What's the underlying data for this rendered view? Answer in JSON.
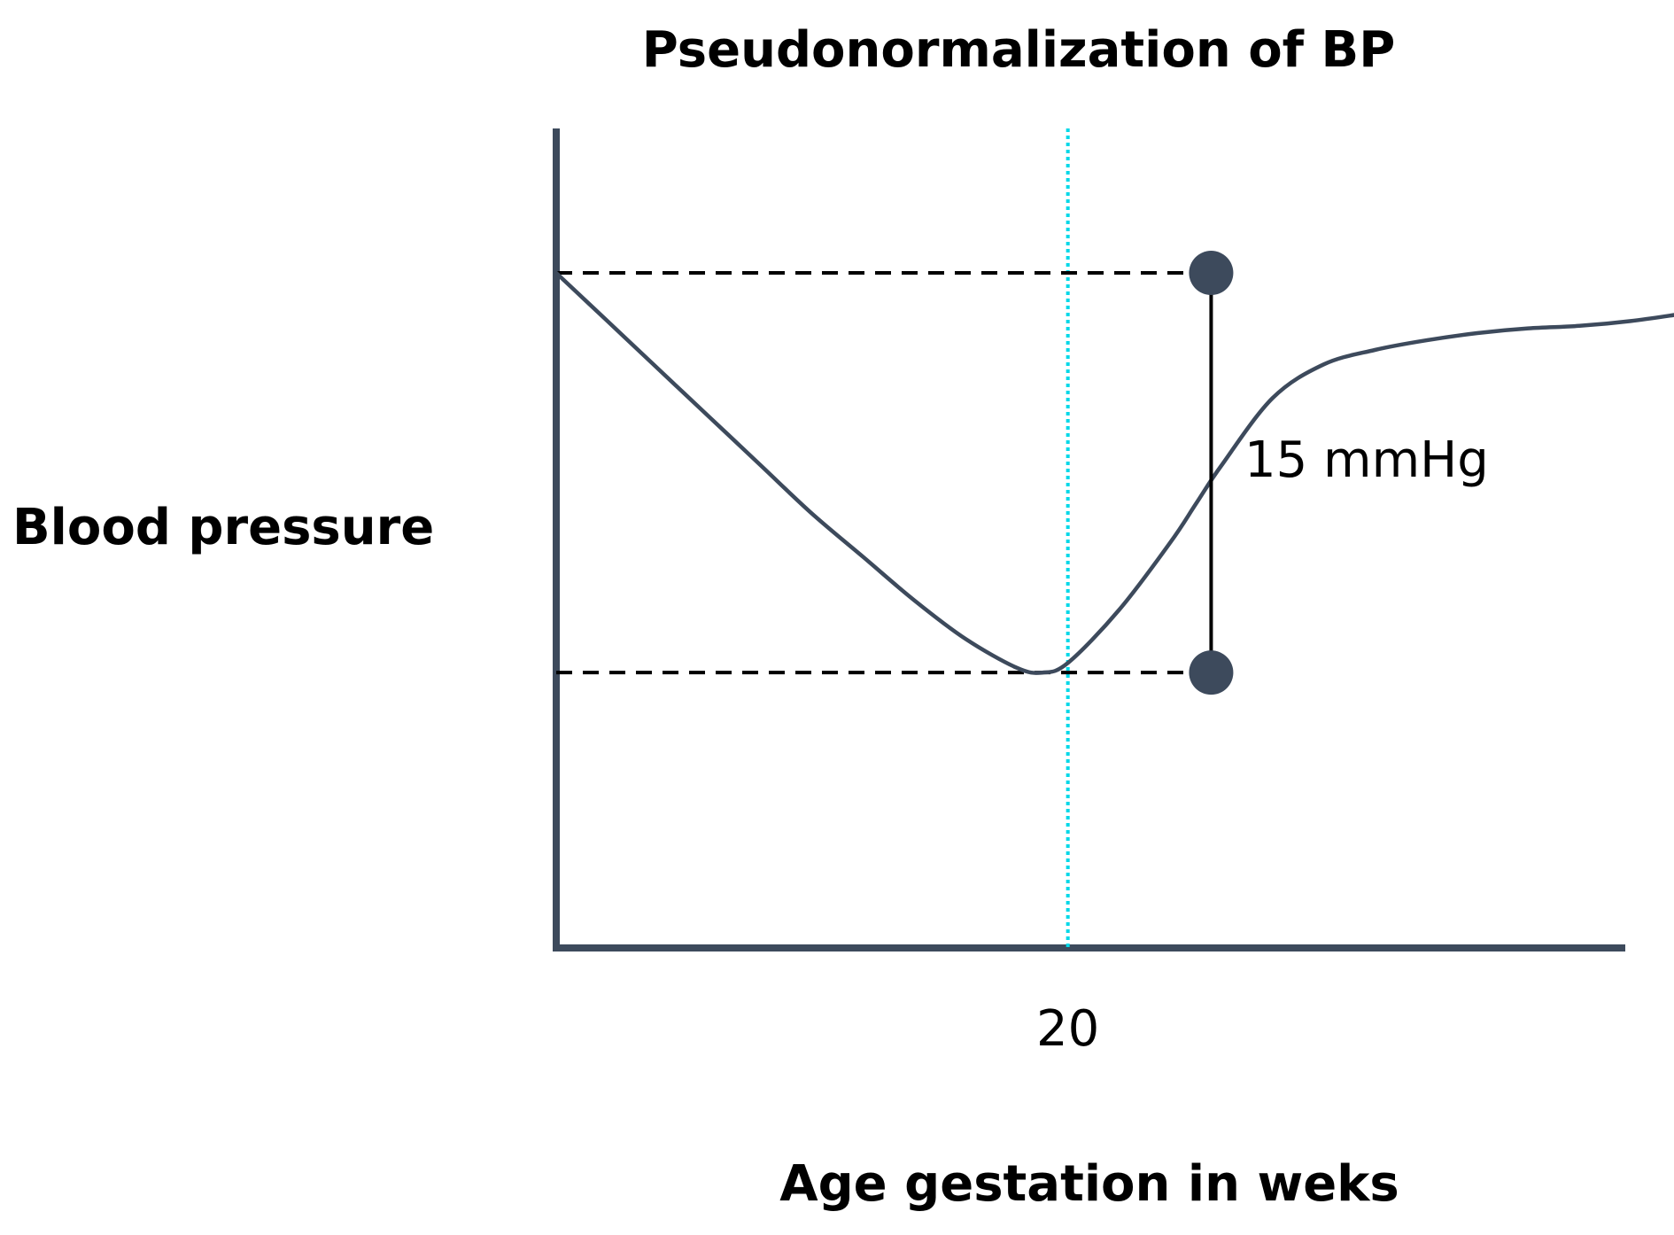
{
  "chart_data": {
    "type": "line",
    "title": "Pseudonormalization of BP",
    "xlabel": "Age gestation in weks",
    "ylabel": "Blood pressure",
    "x_ticks": [
      20
    ],
    "reference_line": {
      "x": 20,
      "style": "dotted",
      "color": "#00d8e8"
    },
    "series": [
      {
        "values_description": "",
        "x": [
          0,
          2,
          4,
          6,
          8,
          10,
          12,
          14,
          16,
          18,
          19,
          20,
          22,
          24,
          25,
          26,
          28,
          30,
          32,
          34,
          36,
          38,
          40,
          42,
          44
        ],
        "y": [
          100,
          90,
          80,
          70,
          60,
          50,
          41,
          32,
          24,
          18,
          17,
          19,
          30,
          44,
          52,
          60,
          74,
          81,
          84,
          86,
          87.5,
          88.5,
          89,
          90,
          91.5
        ],
        "color": "#3d4a5c"
      }
    ],
    "interval": {
      "x": 25.6,
      "y_low": 17,
      "y_high": 100,
      "label": "15 mmHg",
      "marker_color": "#3d4a5c"
    },
    "xlim": [
      0,
      43
    ],
    "ylim": [
      -63,
      130
    ],
    "grid": false,
    "legend": "none"
  }
}
